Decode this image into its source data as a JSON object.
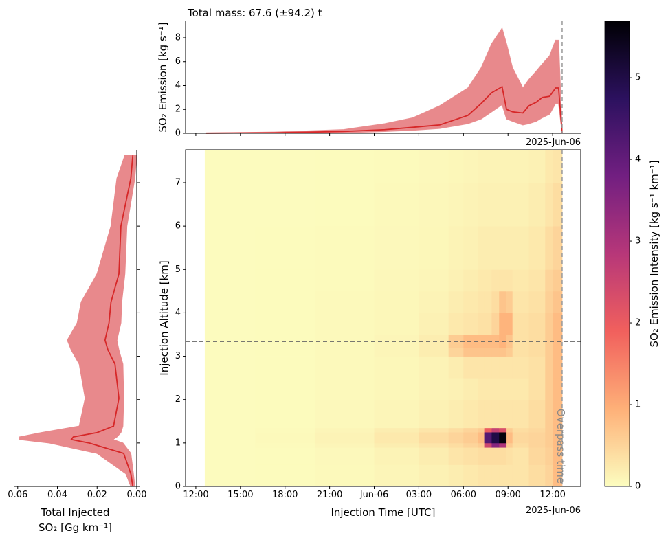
{
  "chart_data": [
    {
      "type": "area-line",
      "title": "Total mass: 67.6 (±94.2) t",
      "ylabel": "SO₂ Emission [kg s⁻¹]",
      "x_offset_label": "2025-Jun-06",
      "x": [
        0.7,
        5.3,
        9.9,
        12.7,
        14.6,
        16.4,
        18.3,
        19.2,
        19.9,
        20.6,
        20.9,
        21.3,
        22.0,
        22.4,
        22.9,
        23.3,
        23.8,
        24.2,
        24.4,
        24.64
      ],
      "values": [
        0.01,
        0.04,
        0.15,
        0.3,
        0.5,
        0.7,
        1.5,
        2.5,
        3.4,
        3.9,
        2.0,
        1.8,
        1.7,
        2.3,
        2.6,
        3.0,
        3.1,
        3.8,
        3.8,
        0
      ],
      "upper": [
        0.02,
        0.1,
        0.3,
        0.8,
        1.3,
        2.3,
        3.8,
        5.5,
        7.5,
        8.8,
        7.5,
        5.5,
        3.8,
        4.5,
        5.2,
        5.8,
        6.5,
        7.8,
        7.8,
        0.2
      ],
      "lower": [
        0,
        0.01,
        0.05,
        0.15,
        0.25,
        0.4,
        0.8,
        1.2,
        1.8,
        2.4,
        1.2,
        1.0,
        0.7,
        0.8,
        1.0,
        1.3,
        1.6,
        2.5,
        2.5,
        0
      ],
      "color": "#d62728",
      "band_color": "#e8898c",
      "xlim": [
        -0.69,
        25.89
      ],
      "xticks": [
        0,
        3,
        6,
        9,
        12,
        15,
        18,
        21,
        24
      ],
      "ylim": [
        0,
        9.38
      ],
      "yticks": [
        0,
        2,
        4,
        6,
        8
      ],
      "vline_x": 24.64
    },
    {
      "type": "profile",
      "xlabel": [
        "Total Injected",
        "SO₂ [Gg km⁻¹]"
      ],
      "y": [
        0,
        0.29,
        0.76,
        1.0,
        1.08,
        1.14,
        1.24,
        1.39,
        2.03,
        2.82,
        3.14,
        3.37,
        3.77,
        4.25,
        4.9,
        6.0,
        7.1,
        7.63
      ],
      "values": [
        0.002,
        0.003,
        0.0066,
        0.024,
        0.033,
        0.032,
        0.02,
        0.0117,
        0.009,
        0.011,
        0.0145,
        0.016,
        0.014,
        0.013,
        0.009,
        0.008,
        0.003,
        0.002
      ],
      "upper": [
        0.003,
        0.0055,
        0.02,
        0.044,
        0.059,
        0.059,
        0.048,
        0.029,
        0.026,
        0.029,
        0.033,
        0.035,
        0.03,
        0.028,
        0.02,
        0.013,
        0.01,
        0.006
      ],
      "lower": [
        0.001,
        0.0017,
        0.003,
        0.007,
        0.012,
        0.01,
        0.008,
        0.007,
        0.0066,
        0.007,
        0.009,
        0.01,
        0.008,
        0.0076,
        0.006,
        0.005,
        0.001,
        0.0
      ],
      "color": "#d62728",
      "band_color": "#e8898c",
      "xlim": [
        0.062,
        0
      ],
      "xticks": [
        0.06,
        0.04,
        0.02,
        {
          "value": 0,
          "label": "0.00"
        }
      ],
      "ylim": [
        0,
        7.76
      ],
      "yticks": [
        0,
        1,
        2,
        3,
        4,
        5,
        6,
        7
      ]
    },
    {
      "type": "heatmap",
      "xlabel": "Injection Time [UTC]",
      "ylabel": "Injection Altitude [km]",
      "x_offset_label": "2025-Jun-06",
      "annotation": "Overpass time",
      "xlim": [
        -0.69,
        25.89
      ],
      "xticks": [
        {
          "value": 0,
          "label": "12:00"
        },
        {
          "value": 3,
          "label": "15:00"
        },
        {
          "value": 6,
          "label": "18:00"
        },
        {
          "value": 9,
          "label": "21:00"
        },
        {
          "value": 12,
          "label": "Jun-06"
        },
        {
          "value": 15,
          "label": "03:00"
        },
        {
          "value": 18,
          "label": "06:00"
        },
        {
          "value": 21,
          "label": "09:00"
        },
        {
          "value": 24,
          "label": "12:00"
        }
      ],
      "ylim": [
        0,
        7.76
      ],
      "yticks": [
        0,
        1,
        2,
        3,
        4,
        5,
        6,
        7
      ],
      "x_edges": [
        0.6,
        4,
        8,
        12,
        15,
        17,
        18,
        19,
        19.4,
        19.9,
        20.4,
        20.9,
        21.3,
        22.4,
        23.5,
        24,
        24.64
      ],
      "y_edges": [
        0,
        0.5,
        0.9,
        1.0,
        1.25,
        1.35,
        2,
        2.5,
        3,
        3.2,
        3.5,
        4,
        4.5,
        5,
        6,
        7,
        7.76
      ],
      "z": [
        [
          0.02,
          0.03,
          0.05,
          0.1,
          0.15,
          0.2,
          0.25,
          0.3,
          0.3,
          0.3,
          0.3,
          0.3,
          0.3,
          0.4,
          0.5,
          0.8
        ],
        [
          0.02,
          0.03,
          0.06,
          0.12,
          0.2,
          0.3,
          0.35,
          0.4,
          0.4,
          0.4,
          0.4,
          0.35,
          0.3,
          0.45,
          0.55,
          0.8
        ],
        [
          0.02,
          0.04,
          0.1,
          0.2,
          0.3,
          0.4,
          0.5,
          0.6,
          2.5,
          3.5,
          3.0,
          0.6,
          0.4,
          0.5,
          0.6,
          0.8
        ],
        [
          0.02,
          0.05,
          0.12,
          0.25,
          0.4,
          0.5,
          0.6,
          0.8,
          4.2,
          5.0,
          5.6,
          0.8,
          0.45,
          0.5,
          0.6,
          0.8
        ],
        [
          0.02,
          0.04,
          0.1,
          0.2,
          0.3,
          0.4,
          0.5,
          0.6,
          2.0,
          2.6,
          2.3,
          0.6,
          0.4,
          0.45,
          0.6,
          0.8
        ],
        [
          0.02,
          0.03,
          0.06,
          0.1,
          0.15,
          0.2,
          0.25,
          0.3,
          0.3,
          0.3,
          0.3,
          0.3,
          0.3,
          0.4,
          0.6,
          0.8
        ],
        [
          0.02,
          0.03,
          0.05,
          0.08,
          0.12,
          0.15,
          0.2,
          0.25,
          0.25,
          0.25,
          0.25,
          0.25,
          0.25,
          0.35,
          0.6,
          0.8
        ],
        [
          0.02,
          0.03,
          0.05,
          0.08,
          0.12,
          0.2,
          0.3,
          0.3,
          0.3,
          0.3,
          0.3,
          0.3,
          0.3,
          0.35,
          0.6,
          0.8
        ],
        [
          0.02,
          0.03,
          0.05,
          0.1,
          0.2,
          0.5,
          0.7,
          0.7,
          0.7,
          0.7,
          0.7,
          0.6,
          0.35,
          0.4,
          0.6,
          0.8
        ],
        [
          0.02,
          0.03,
          0.05,
          0.1,
          0.2,
          0.6,
          0.8,
          0.8,
          0.8,
          0.8,
          0.9,
          0.7,
          0.35,
          0.4,
          0.6,
          0.8
        ],
        [
          0.02,
          0.03,
          0.05,
          0.08,
          0.15,
          0.25,
          0.3,
          0.35,
          0.35,
          0.5,
          0.9,
          0.9,
          0.35,
          0.4,
          0.6,
          0.8
        ],
        [
          0.02,
          0.03,
          0.05,
          0.08,
          0.12,
          0.2,
          0.25,
          0.3,
          0.3,
          0.4,
          0.7,
          0.6,
          0.3,
          0.35,
          0.55,
          0.7
        ],
        [
          0.02,
          0.03,
          0.04,
          0.07,
          0.1,
          0.15,
          0.2,
          0.25,
          0.25,
          0.3,
          0.3,
          0.3,
          0.25,
          0.3,
          0.5,
          0.6
        ],
        [
          0.02,
          0.03,
          0.04,
          0.06,
          0.08,
          0.12,
          0.15,
          0.2,
          0.2,
          0.2,
          0.2,
          0.2,
          0.2,
          0.25,
          0.4,
          0.5
        ],
        [
          0.02,
          0.02,
          0.03,
          0.05,
          0.07,
          0.1,
          0.12,
          0.15,
          0.15,
          0.15,
          0.15,
          0.15,
          0.15,
          0.2,
          0.3,
          0.4
        ],
        [
          0.02,
          0.02,
          0.03,
          0.04,
          0.06,
          0.08,
          0.1,
          0.12,
          0.12,
          0.12,
          0.12,
          0.12,
          0.12,
          0.15,
          0.25,
          0.3
        ]
      ],
      "vline_x": 24.64,
      "hline_y": 3.34
    },
    {
      "type": "colorbar",
      "label": "SO₂ Emission Intensity [kg s⁻¹ km⁻¹]",
      "clim": [
        0,
        5.69
      ],
      "ticks": [
        0,
        1,
        2,
        3,
        4,
        5
      ],
      "colormap": [
        "#fcfdbf",
        "#feb078",
        "#f1605d",
        "#b73779",
        "#721f81",
        "#2c115f",
        "#000004"
      ]
    }
  ]
}
